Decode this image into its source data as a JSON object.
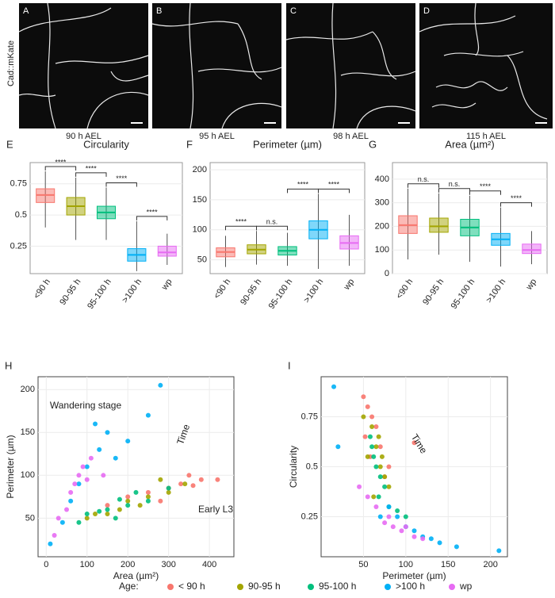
{
  "images": {
    "ylabel": "Cad::mKate",
    "panels": [
      {
        "label": "A",
        "caption": "90 h AEL"
      },
      {
        "label": "B",
        "caption": "95 h AEL"
      },
      {
        "label": "C",
        "caption": "98 h AEL"
      },
      {
        "label": "D",
        "caption": "115 h AEL"
      }
    ]
  },
  "chart_data": [
    {
      "type": "box",
      "panel": "E",
      "title": "Circularity",
      "categories": [
        "<90 h",
        "90-95 h",
        "95-100 h",
        ">100 h",
        "wp"
      ],
      "colors": [
        "#f8766d",
        "#a3a500",
        "#00bf7d",
        "#00b0f6",
        "#e76bf3"
      ],
      "boxes": [
        {
          "q1": 0.6,
          "median": 0.66,
          "q3": 0.71,
          "low": 0.4,
          "high": 0.85
        },
        {
          "q1": 0.5,
          "median": 0.57,
          "q3": 0.64,
          "low": 0.3,
          "high": 0.8
        },
        {
          "q1": 0.47,
          "median": 0.52,
          "q3": 0.57,
          "low": 0.3,
          "high": 0.72
        },
        {
          "q1": 0.13,
          "median": 0.18,
          "q3": 0.23,
          "low": 0.05,
          "high": 0.45
        },
        {
          "q1": 0.17,
          "median": 0.2,
          "q3": 0.25,
          "low": 0.1,
          "high": 0.35
        }
      ],
      "comparisons": [
        {
          "pair": [
            "<90 h",
            "90-95 h"
          ],
          "label": "****"
        },
        {
          "pair": [
            "90-95 h",
            "95-100 h"
          ],
          "label": "****"
        },
        {
          "pair": [
            "95-100 h",
            ">100 h"
          ],
          "label": "****"
        },
        {
          "pair": [
            ">100 h",
            "wp"
          ],
          "label": "****"
        }
      ],
      "ylim": [
        0.03,
        0.92
      ],
      "yticks": [
        0.25,
        0.5,
        0.75
      ],
      "grid": true
    },
    {
      "type": "box",
      "panel": "F",
      "title": "Perimeter (µm)",
      "categories": [
        "<90 h",
        "90-95 h",
        "95-100 h",
        ">100 h",
        "wp"
      ],
      "colors": [
        "#f8766d",
        "#a3a500",
        "#00bf7d",
        "#00b0f6",
        "#e76bf3"
      ],
      "boxes": [
        {
          "q1": 55,
          "median": 63,
          "q3": 70,
          "low": 38,
          "high": 90
        },
        {
          "q1": 60,
          "median": 67,
          "q3": 75,
          "low": 42,
          "high": 98
        },
        {
          "q1": 58,
          "median": 65,
          "q3": 72,
          "low": 40,
          "high": 95
        },
        {
          "q1": 85,
          "median": 100,
          "q3": 115,
          "low": 35,
          "high": 160
        },
        {
          "q1": 68,
          "median": 78,
          "q3": 90,
          "low": 40,
          "high": 125
        }
      ],
      "comparisons": [
        {
          "pair": [
            "<90 h",
            "90-95 h"
          ],
          "label": "****"
        },
        {
          "pair": [
            "90-95 h",
            "95-100 h"
          ],
          "label": "n.s."
        },
        {
          "pair": [
            "95-100 h",
            ">100 h"
          ],
          "label": "****"
        },
        {
          "pair": [
            ">100 h",
            "wp"
          ],
          "label": "****"
        }
      ],
      "ylim": [
        27,
        212
      ],
      "yticks": [
        50,
        100,
        150,
        200
      ],
      "grid": true
    },
    {
      "type": "box",
      "panel": "G",
      "title": "Area (µm²)",
      "categories": [
        "<90 h",
        "90-95 h",
        "95-100 h",
        ">100 h",
        "wp"
      ],
      "colors": [
        "#f8766d",
        "#a3a500",
        "#00bf7d",
        "#00b0f6",
        "#e76bf3"
      ],
      "boxes": [
        {
          "q1": 170,
          "median": 205,
          "q3": 245,
          "low": 60,
          "high": 360
        },
        {
          "q1": 175,
          "median": 200,
          "q3": 235,
          "low": 80,
          "high": 340
        },
        {
          "q1": 160,
          "median": 195,
          "q3": 230,
          "low": 50,
          "high": 330
        },
        {
          "q1": 120,
          "median": 145,
          "q3": 170,
          "low": 30,
          "high": 280
        },
        {
          "q1": 85,
          "median": 100,
          "q3": 125,
          "low": 40,
          "high": 180
        }
      ],
      "comparisons": [
        {
          "pair": [
            "<90 h",
            "90-95 h"
          ],
          "label": "n.s."
        },
        {
          "pair": [
            "90-95 h",
            "95-100 h"
          ],
          "label": "n.s."
        },
        {
          "pair": [
            "95-100 h",
            ">100 h"
          ],
          "label": "****"
        },
        {
          "pair": [
            ">100 h",
            "wp"
          ],
          "label": "****"
        }
      ],
      "ylim": [
        0,
        470
      ],
      "yticks": [
        0,
        100,
        200,
        300,
        400
      ],
      "grid": true
    },
    {
      "type": "scatter",
      "panel": "H",
      "xlabel": "Area (µm²)",
      "ylabel": "Perimeter (µm)",
      "annotations": [
        "Wandering stage",
        "Time",
        "Early L3"
      ],
      "xlim": [
        -20,
        460
      ],
      "xticks": [
        0,
        100,
        200,
        300,
        400
      ],
      "ylim": [
        5,
        215
      ],
      "yticks": [
        50,
        100,
        150,
        200
      ],
      "grid": true,
      "series": [
        {
          "name": "< 90 h",
          "color": "#f8766d",
          "x": [
            330,
            380,
            300,
            350,
            250,
            420,
            200,
            280,
            360,
            150
          ],
          "values": [
            90,
            95,
            85,
            100,
            80,
            95,
            75,
            70,
            88,
            65
          ]
        },
        {
          "name": "90-95 h",
          "color": "#a3a500",
          "x": [
            250,
            200,
            300,
            180,
            150,
            340,
            230,
            120,
            280,
            100
          ],
          "values": [
            75,
            70,
            80,
            60,
            55,
            90,
            65,
            55,
            95,
            50
          ]
        },
        {
          "name": "95-100 h",
          "color": "#00bf7d",
          "x": [
            150,
            200,
            250,
            100,
            180,
            130,
            220,
            80,
            300,
            170
          ],
          "values": [
            60,
            65,
            70,
            55,
            72,
            58,
            80,
            45,
            85,
            50
          ]
        },
        {
          "name": ">100 h",
          "color": "#00b0f6",
          "x": [
            130,
            150,
            100,
            200,
            250,
            170,
            80,
            120,
            280,
            60,
            40,
            10
          ],
          "values": [
            130,
            150,
            110,
            140,
            170,
            120,
            90,
            160,
            205,
            70,
            45,
            20
          ]
        },
        {
          "name": "wp",
          "color": "#e76bf3",
          "x": [
            80,
            90,
            60,
            100,
            30,
            20,
            110,
            70,
            50,
            140
          ],
          "values": [
            100,
            110,
            80,
            95,
            50,
            30,
            120,
            90,
            60,
            100
          ]
        }
      ]
    },
    {
      "type": "scatter",
      "panel": "I",
      "xlabel": "Perimeter (µm)",
      "ylabel": "Circularity",
      "annotations": [
        "Time"
      ],
      "xlim": [
        0,
        220
      ],
      "xticks": [
        50,
        100,
        150,
        200
      ],
      "ylim": [
        0.05,
        0.95
      ],
      "yticks": [
        0.25,
        0.5,
        0.75
      ],
      "grid": true,
      "series": [
        {
          "name": "< 90 h",
          "color": "#f8766d",
          "x": [
            50,
            55,
            60,
            65,
            52,
            70,
            80,
            58,
            75,
            110
          ],
          "values": [
            0.85,
            0.8,
            0.75,
            0.7,
            0.65,
            0.6,
            0.5,
            0.55,
            0.45,
            0.62
          ]
        },
        {
          "name": "90-95 h",
          "color": "#a3a500",
          "x": [
            60,
            65,
            70,
            55,
            75,
            68,
            80,
            62,
            50,
            72
          ],
          "values": [
            0.7,
            0.6,
            0.5,
            0.55,
            0.45,
            0.65,
            0.4,
            0.35,
            0.75,
            0.55
          ]
        },
        {
          "name": "95-100 h",
          "color": "#00bf7d",
          "x": [
            60,
            65,
            70,
            62,
            75,
            80,
            58,
            68,
            90,
            100
          ],
          "values": [
            0.6,
            0.5,
            0.45,
            0.55,
            0.4,
            0.3,
            0.65,
            0.35,
            0.28,
            0.25
          ]
        },
        {
          "name": ">100 h",
          "color": "#00b0f6",
          "x": [
            100,
            120,
            140,
            160,
            90,
            80,
            110,
            20,
            15,
            210,
            130,
            70
          ],
          "values": [
            0.2,
            0.15,
            0.12,
            0.1,
            0.25,
            0.3,
            0.18,
            0.6,
            0.9,
            0.08,
            0.14,
            0.25
          ]
        },
        {
          "name": "wp",
          "color": "#e76bf3",
          "x": [
            75,
            85,
            95,
            65,
            110,
            55,
            100,
            45,
            120,
            80
          ],
          "values": [
            0.22,
            0.2,
            0.18,
            0.3,
            0.15,
            0.35,
            0.2,
            0.4,
            0.14,
            0.25
          ]
        }
      ]
    }
  ],
  "legend": {
    "title": "Age:"
  }
}
